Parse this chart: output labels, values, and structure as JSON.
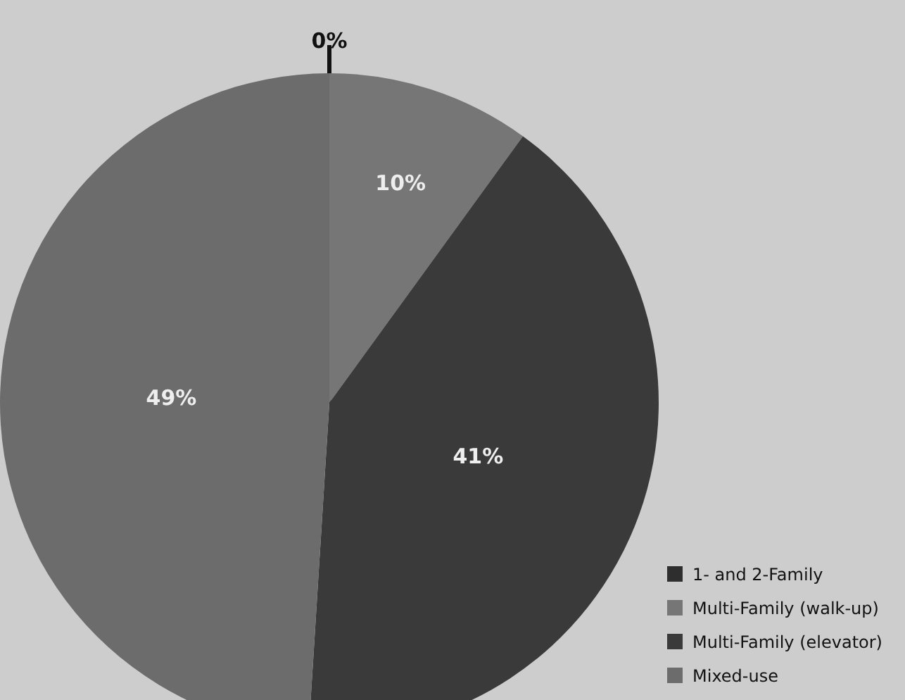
{
  "chart_data": {
    "type": "pie",
    "categories": [
      "1- and 2-Family",
      "Multi-Family (walk-up)",
      "Multi-Family (elevator)",
      "Mixed-use"
    ],
    "values": [
      0,
      10,
      41,
      49
    ],
    "colors": [
      "#2e2e2e",
      "#767676",
      "#3a3a3a",
      "#6c6c6c"
    ],
    "value_labels": [
      "0%",
      "10%",
      "41%",
      "49%"
    ],
    "legend": "bottom right"
  }
}
